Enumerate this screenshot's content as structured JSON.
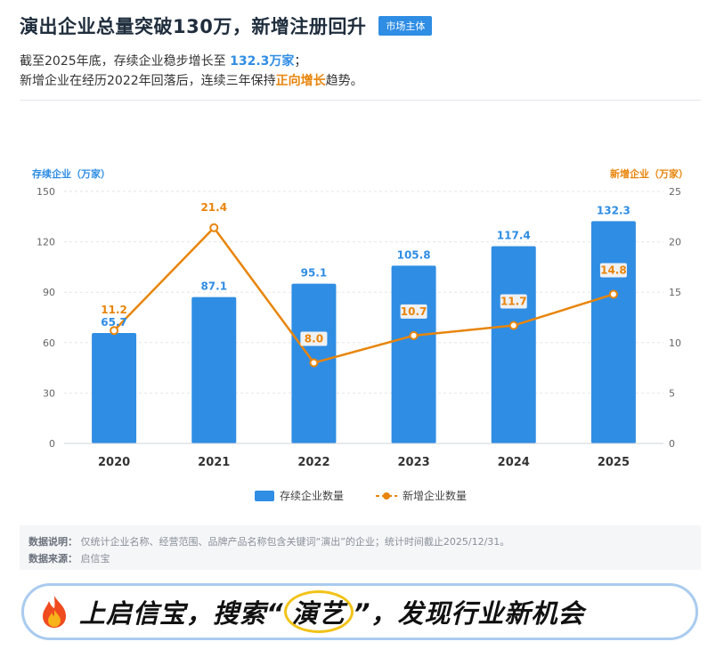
{
  "header": {
    "title": "演出企业总量突破130万，新增注册回升",
    "badge": "市场主体",
    "line1_prefix": "截至2025年底，存续企业稳步增长至 ",
    "line1_highlight": "132.3万家",
    "line1_suffix": "；",
    "line2_prefix": "新增企业在经历2022年回落后，连续三年保持",
    "line2_highlight": "正向增长",
    "line2_suffix": "趋势。"
  },
  "chart_data": {
    "type": "bar",
    "categories": [
      "2020",
      "2021",
      "2022",
      "2023",
      "2024",
      "2025"
    ],
    "series": [
      {
        "name": "存续企业数量",
        "type": "bar",
        "axis": "left",
        "values": [
          65.7,
          87.1,
          95.1,
          105.8,
          117.4,
          132.3
        ],
        "labels": [
          "65.7",
          "87.1",
          "95.1",
          "105.8",
          "117.4",
          "132.3"
        ],
        "color": "#2f8de4"
      },
      {
        "name": "新增企业数量",
        "type": "line",
        "axis": "right",
        "values": [
          11.2,
          21.4,
          8.0,
          10.7,
          11.7,
          14.8
        ],
        "labels": [
          "11.2",
          "21.4",
          "8.0",
          "10.7",
          "11.7",
          "14.8"
        ],
        "color": "#e8850c"
      }
    ],
    "ylabel_left": "存续企业（万家）",
    "ylabel_right": "新增企业（万家）",
    "ylim_left": [
      0,
      150
    ],
    "yticks_left": [
      "0",
      "30",
      "60",
      "90",
      "120",
      "150"
    ],
    "ylim_right": [
      0,
      25
    ],
    "yticks_right": [
      "0",
      "5",
      "10",
      "15",
      "20",
      "25"
    ],
    "grid": true,
    "legend": "bottom-center"
  },
  "notes": {
    "desc_label": "数据说明：",
    "desc_text": "仅统计企业名称、经营范围、品牌产品名称包含关键词“演出”的企业；统计时间截止2025/12/31。",
    "source_label": "数据来源：",
    "source_text": "启信宝"
  },
  "banner": {
    "icon": "flame-icon",
    "part1": "上启信宝，搜索“",
    "keyword": "演艺",
    "part2": "”，发现行业新机会"
  }
}
